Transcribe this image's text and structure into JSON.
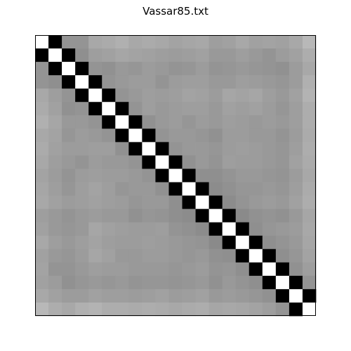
{
  "chart_data": {
    "type": "heatmap",
    "title": "Vassar85.txt",
    "xlabel": "",
    "ylabel": "",
    "colormap": "gray",
    "colorbar": false,
    "axes_ticks": false,
    "rows": 21,
    "cols": 21,
    "value_range": [
      0,
      1
    ],
    "matrix": [
      [
        1.0,
        0.0,
        0.58,
        0.58,
        0.66,
        0.67,
        0.69,
        0.66,
        0.67,
        0.66,
        0.64,
        0.65,
        0.66,
        0.62,
        0.63,
        0.66,
        0.63,
        0.64,
        0.63,
        0.66,
        0.72
      ],
      [
        0.0,
        1.0,
        0.0,
        0.56,
        0.62,
        0.63,
        0.65,
        0.64,
        0.63,
        0.62,
        0.61,
        0.62,
        0.63,
        0.6,
        0.6,
        0.62,
        0.6,
        0.58,
        0.61,
        0.63,
        0.68
      ],
      [
        0.58,
        0.0,
        1.0,
        0.0,
        0.58,
        0.57,
        0.6,
        0.59,
        0.61,
        0.6,
        0.58,
        0.59,
        0.61,
        0.58,
        0.59,
        0.6,
        0.59,
        0.58,
        0.57,
        0.61,
        0.66
      ],
      [
        0.58,
        0.56,
        0.0,
        1.0,
        0.0,
        0.58,
        0.6,
        0.61,
        0.61,
        0.58,
        0.61,
        0.62,
        0.62,
        0.6,
        0.6,
        0.62,
        0.61,
        0.6,
        0.59,
        0.61,
        0.69
      ],
      [
        0.66,
        0.62,
        0.58,
        0.0,
        1.0,
        0.0,
        0.58,
        0.6,
        0.62,
        0.61,
        0.62,
        0.64,
        0.63,
        0.61,
        0.65,
        0.64,
        0.65,
        0.62,
        0.6,
        0.63,
        0.7
      ],
      [
        0.67,
        0.63,
        0.57,
        0.58,
        0.0,
        1.0,
        0.0,
        0.58,
        0.62,
        0.6,
        0.61,
        0.62,
        0.62,
        0.6,
        0.63,
        0.62,
        0.63,
        0.61,
        0.59,
        0.62,
        0.68
      ],
      [
        0.69,
        0.65,
        0.6,
        0.6,
        0.58,
        0.0,
        1.0,
        0.0,
        0.57,
        0.6,
        0.61,
        0.59,
        0.61,
        0.6,
        0.62,
        0.61,
        0.6,
        0.61,
        0.6,
        0.62,
        0.68
      ],
      [
        0.66,
        0.64,
        0.59,
        0.61,
        0.6,
        0.58,
        0.0,
        1.0,
        0.0,
        0.58,
        0.6,
        0.6,
        0.59,
        0.57,
        0.61,
        0.61,
        0.6,
        0.6,
        0.58,
        0.61,
        0.67
      ],
      [
        0.67,
        0.63,
        0.61,
        0.61,
        0.62,
        0.62,
        0.57,
        0.0,
        1.0,
        0.0,
        0.58,
        0.6,
        0.6,
        0.59,
        0.61,
        0.62,
        0.61,
        0.6,
        0.59,
        0.62,
        0.68
      ],
      [
        0.66,
        0.62,
        0.6,
        0.58,
        0.61,
        0.6,
        0.6,
        0.58,
        0.0,
        1.0,
        0.0,
        0.57,
        0.6,
        0.58,
        0.62,
        0.61,
        0.61,
        0.6,
        0.59,
        0.63,
        0.67
      ],
      [
        0.64,
        0.61,
        0.58,
        0.61,
        0.62,
        0.61,
        0.61,
        0.6,
        0.58,
        0.0,
        1.0,
        0.0,
        0.56,
        0.56,
        0.58,
        0.6,
        0.6,
        0.59,
        0.58,
        0.61,
        0.66
      ],
      [
        0.65,
        0.62,
        0.59,
        0.62,
        0.64,
        0.62,
        0.59,
        0.6,
        0.6,
        0.57,
        0.0,
        1.0,
        0.0,
        0.55,
        0.57,
        0.59,
        0.59,
        0.6,
        0.59,
        0.62,
        0.67
      ],
      [
        0.66,
        0.63,
        0.61,
        0.62,
        0.63,
        0.62,
        0.61,
        0.59,
        0.6,
        0.6,
        0.56,
        0.0,
        1.0,
        0.0,
        0.55,
        0.58,
        0.6,
        0.61,
        0.6,
        0.63,
        0.68
      ],
      [
        0.62,
        0.6,
        0.58,
        0.6,
        0.61,
        0.6,
        0.6,
        0.57,
        0.59,
        0.58,
        0.56,
        0.55,
        0.0,
        1.0,
        0.0,
        0.54,
        0.57,
        0.58,
        0.57,
        0.6,
        0.65
      ],
      [
        0.63,
        0.6,
        0.59,
        0.6,
        0.65,
        0.63,
        0.62,
        0.61,
        0.61,
        0.62,
        0.58,
        0.57,
        0.55,
        0.0,
        1.0,
        0.0,
        0.56,
        0.59,
        0.6,
        0.61,
        0.66
      ],
      [
        0.66,
        0.62,
        0.6,
        0.62,
        0.64,
        0.62,
        0.61,
        0.61,
        0.62,
        0.61,
        0.6,
        0.59,
        0.58,
        0.54,
        0.0,
        1.0,
        0.0,
        0.56,
        0.58,
        0.6,
        0.65
      ],
      [
        0.63,
        0.6,
        0.59,
        0.61,
        0.65,
        0.63,
        0.6,
        0.6,
        0.61,
        0.61,
        0.6,
        0.59,
        0.6,
        0.57,
        0.56,
        0.0,
        1.0,
        0.0,
        0.56,
        0.59,
        0.64
      ],
      [
        0.64,
        0.58,
        0.58,
        0.6,
        0.62,
        0.61,
        0.61,
        0.6,
        0.6,
        0.6,
        0.59,
        0.6,
        0.61,
        0.58,
        0.59,
        0.56,
        0.0,
        1.0,
        0.0,
        0.57,
        0.62
      ],
      [
        0.63,
        0.61,
        0.57,
        0.59,
        0.6,
        0.59,
        0.6,
        0.58,
        0.59,
        0.59,
        0.58,
        0.59,
        0.6,
        0.57,
        0.6,
        0.58,
        0.56,
        0.0,
        1.0,
        0.0,
        0.58
      ],
      [
        0.66,
        0.63,
        0.61,
        0.61,
        0.63,
        0.62,
        0.62,
        0.61,
        0.62,
        0.63,
        0.61,
        0.62,
        0.63,
        0.6,
        0.61,
        0.6,
        0.59,
        0.57,
        0.0,
        1.0,
        0.0
      ],
      [
        0.72,
        0.68,
        0.66,
        0.69,
        0.7,
        0.68,
        0.68,
        0.67,
        0.68,
        0.67,
        0.66,
        0.67,
        0.68,
        0.65,
        0.66,
        0.65,
        0.64,
        0.62,
        0.58,
        0.0,
        1.0
      ]
    ]
  }
}
